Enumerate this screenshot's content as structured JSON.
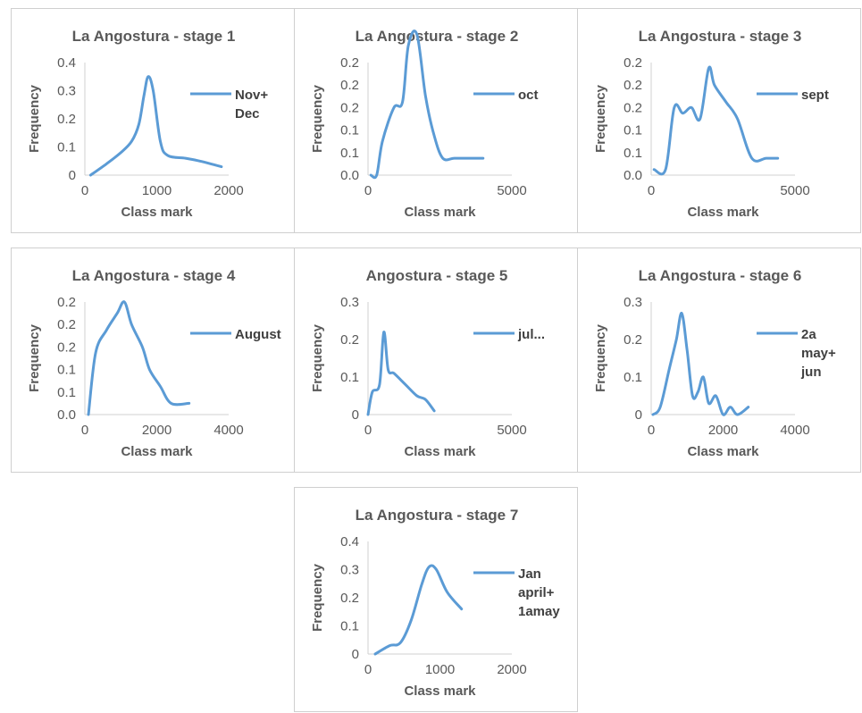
{
  "chart_data": [
    {
      "type": "line",
      "title": "La Angostura - stage 1",
      "xlabel": "Class mark",
      "ylabel": "Frequency",
      "xlim": [
        0,
        2000
      ],
      "ylim": [
        0,
        0.4
      ],
      "xticks": [
        "0",
        "1000",
        "2000"
      ],
      "yticks": [
        "0",
        "0.1",
        "0.2",
        "0.3",
        "0.4"
      ],
      "series": [
        {
          "name": [
            "Nov+",
            "Dec"
          ],
          "x": [
            80,
            300,
            500,
            650,
            750,
            820,
            880,
            950,
            1050,
            1150,
            1400,
            1600,
            1900
          ],
          "y": [
            0.0,
            0.04,
            0.08,
            0.12,
            0.18,
            0.28,
            0.35,
            0.3,
            0.12,
            0.07,
            0.06,
            0.05,
            0.03
          ]
        }
      ]
    },
    {
      "type": "line",
      "title": "La Angostura - stage 2",
      "xlabel": "Class mark",
      "ylabel": "Frequency",
      "xlim": [
        0,
        5000
      ],
      "ylim": [
        0,
        0.2
      ],
      "xticks": [
        "0",
        "5000"
      ],
      "yticks": [
        "0.0",
        "0.1",
        "0.1",
        "0.2",
        "0.2",
        "0.2"
      ],
      "series": [
        {
          "name": [
            "oct"
          ],
          "x": [
            100,
            300,
            500,
            900,
            1200,
            1400,
            1700,
            2000,
            2300,
            2600,
            3000,
            3500,
            4000
          ],
          "y": [
            0.0,
            0.0,
            0.06,
            0.12,
            0.13,
            0.23,
            0.25,
            0.14,
            0.07,
            0.03,
            0.03,
            0.03,
            0.03
          ]
        }
      ]
    },
    {
      "type": "line",
      "title": "La Angostura - stage 3",
      "xlabel": "Class mark",
      "ylabel": "Frequency",
      "xlim": [
        0,
        5000
      ],
      "ylim": [
        0,
        0.2
      ],
      "xticks": [
        "0",
        "5000"
      ],
      "yticks": [
        "0.0",
        "0.1",
        "0.1",
        "0.2",
        "0.2",
        "0.2"
      ],
      "series": [
        {
          "name": [
            "sept"
          ],
          "x": [
            100,
            500,
            800,
            1100,
            1400,
            1700,
            2000,
            2200,
            2600,
            3000,
            3500,
            4000,
            4400
          ],
          "y": [
            0.01,
            0.01,
            0.12,
            0.11,
            0.12,
            0.1,
            0.19,
            0.16,
            0.13,
            0.1,
            0.03,
            0.03,
            0.03
          ]
        }
      ]
    },
    {
      "type": "line",
      "title": "La Angostura - stage 4",
      "xlabel": "Class mark",
      "ylabel": "Frequency",
      "xlim": [
        0,
        4000
      ],
      "ylim": [
        0,
        0.2
      ],
      "xticks": [
        "0",
        "2000",
        "4000"
      ],
      "yticks": [
        "0.0",
        "0.1",
        "0.1",
        "0.2",
        "0.2",
        "0.2"
      ],
      "series": [
        {
          "name": [
            "August"
          ],
          "x": [
            100,
            300,
            600,
            900,
            1100,
            1300,
            1600,
            1800,
            2100,
            2400,
            2900
          ],
          "y": [
            0.0,
            0.11,
            0.15,
            0.18,
            0.2,
            0.16,
            0.12,
            0.08,
            0.05,
            0.02,
            0.02
          ]
        }
      ]
    },
    {
      "type": "line",
      "title": "Angostura - stage 5",
      "xlabel": "Class mark",
      "ylabel": "Frequency",
      "xlim": [
        0,
        5000
      ],
      "ylim": [
        0,
        0.3
      ],
      "xticks": [
        "0",
        "5000"
      ],
      "yticks": [
        "0",
        "0.1",
        "0.2",
        "0.3"
      ],
      "series": [
        {
          "name": [
            "jul..."
          ],
          "x": [
            0,
            150,
            400,
            550,
            700,
            900,
            1300,
            1700,
            2000,
            2300
          ],
          "y": [
            0.0,
            0.06,
            0.08,
            0.22,
            0.12,
            0.11,
            0.08,
            0.05,
            0.04,
            0.01
          ]
        }
      ]
    },
    {
      "type": "line",
      "title": "La Angostura - stage 6",
      "xlabel": "Class mark",
      "ylabel": "Frequency",
      "xlim": [
        0,
        4000
      ],
      "ylim": [
        0,
        0.3
      ],
      "xticks": [
        "0",
        "2000",
        "4000"
      ],
      "yticks": [
        "0",
        "0.1",
        "0.2",
        "0.3"
      ],
      "series": [
        {
          "name": [
            "2a",
            "may+",
            "jun"
          ],
          "x": [
            50,
            250,
            500,
            700,
            850,
            1000,
            1150,
            1300,
            1450,
            1600,
            1800,
            2000,
            2200,
            2400,
            2700
          ],
          "y": [
            0.0,
            0.02,
            0.12,
            0.2,
            0.27,
            0.17,
            0.05,
            0.06,
            0.1,
            0.03,
            0.05,
            0.0,
            0.02,
            0.0,
            0.02
          ]
        }
      ]
    },
    {
      "type": "line",
      "title": "La Angostura - stage 7",
      "xlabel": "Class mark",
      "ylabel": "Frequency",
      "xlim": [
        0,
        2000
      ],
      "ylim": [
        0,
        0.4
      ],
      "xticks": [
        "0",
        "1000",
        "2000"
      ],
      "yticks": [
        "0",
        "0.1",
        "0.2",
        "0.3",
        "0.4"
      ],
      "series": [
        {
          "name": [
            "Jan",
            "april+",
            "1amay"
          ],
          "x": [
            100,
            300,
            450,
            600,
            750,
            850,
            950,
            1100,
            1300
          ],
          "y": [
            0.0,
            0.03,
            0.04,
            0.12,
            0.25,
            0.31,
            0.3,
            0.22,
            0.16
          ]
        }
      ]
    }
  ],
  "colors": {
    "series": "#5b9bd5",
    "text": "#595959",
    "axis": "#d0d0d0",
    "border": "#cfcfcf"
  }
}
